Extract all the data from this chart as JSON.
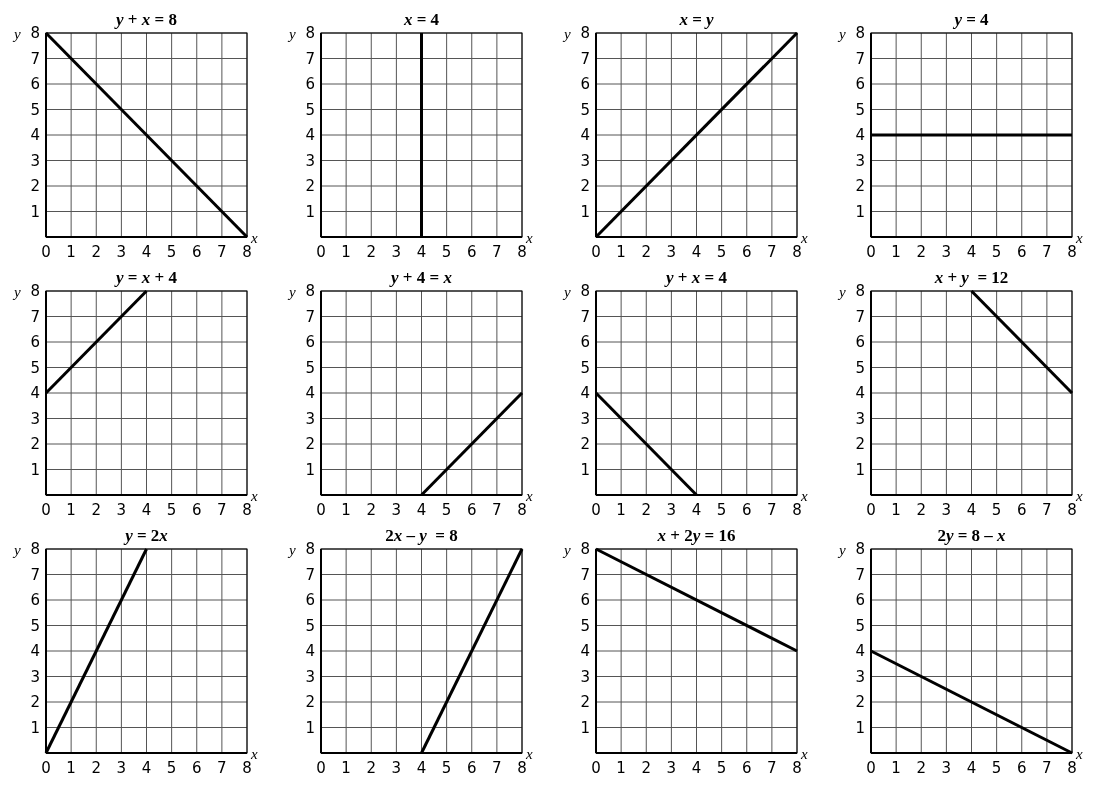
{
  "chart_data": [
    {
      "type": "line",
      "title": "y + x = 8",
      "xlabel": "x",
      "ylabel": "y",
      "x": [
        0,
        8
      ],
      "values": [
        8,
        0
      ],
      "color": "#000000",
      "xlim": [
        0,
        8
      ],
      "ylim": [
        0,
        8
      ],
      "xticks": [
        0,
        1,
        2,
        3,
        4,
        5,
        6,
        7,
        8
      ],
      "yticks": [
        1,
        2,
        3,
        4,
        5,
        6,
        7,
        8
      ],
      "grid": true
    },
    {
      "type": "line",
      "title": "x = 4",
      "xlabel": "x",
      "ylabel": "y",
      "x": [
        4,
        4
      ],
      "values": [
        0,
        8
      ],
      "color": "#000000",
      "xlim": [
        0,
        8
      ],
      "ylim": [
        0,
        8
      ],
      "xticks": [
        0,
        1,
        2,
        3,
        4,
        5,
        6,
        7,
        8
      ],
      "yticks": [
        1,
        2,
        3,
        4,
        5,
        6,
        7,
        8
      ],
      "grid": true
    },
    {
      "type": "line",
      "title": "x = y",
      "xlabel": "x",
      "ylabel": "y",
      "x": [
        0,
        8
      ],
      "values": [
        0,
        8
      ],
      "color": "#000000",
      "xlim": [
        0,
        8
      ],
      "ylim": [
        0,
        8
      ],
      "xticks": [
        0,
        1,
        2,
        3,
        4,
        5,
        6,
        7,
        8
      ],
      "yticks": [
        1,
        2,
        3,
        4,
        5,
        6,
        7,
        8
      ],
      "grid": true
    },
    {
      "type": "line",
      "title": "y = 4",
      "xlabel": "x",
      "ylabel": "y",
      "x": [
        0,
        8
      ],
      "values": [
        4,
        4
      ],
      "color": "#000000",
      "xlim": [
        0,
        8
      ],
      "ylim": [
        0,
        8
      ],
      "xticks": [
        0,
        1,
        2,
        3,
        4,
        5,
        6,
        7,
        8
      ],
      "yticks": [
        1,
        2,
        3,
        4,
        5,
        6,
        7,
        8
      ],
      "grid": true
    },
    {
      "type": "line",
      "title": "y = x + 4",
      "xlabel": "x",
      "ylabel": "y",
      "x": [
        0,
        4
      ],
      "values": [
        4,
        8
      ],
      "color": "#000000",
      "xlim": [
        0,
        8
      ],
      "ylim": [
        0,
        8
      ],
      "xticks": [
        0,
        1,
        2,
        3,
        4,
        5,
        6,
        7,
        8
      ],
      "yticks": [
        1,
        2,
        3,
        4,
        5,
        6,
        7,
        8
      ],
      "grid": true
    },
    {
      "type": "line",
      "title": "y + 4 = x",
      "xlabel": "x",
      "ylabel": "y",
      "x": [
        4,
        8
      ],
      "values": [
        0,
        4
      ],
      "color": "#000000",
      "xlim": [
        0,
        8
      ],
      "ylim": [
        0,
        8
      ],
      "xticks": [
        0,
        1,
        2,
        3,
        4,
        5,
        6,
        7,
        8
      ],
      "yticks": [
        1,
        2,
        3,
        4,
        5,
        6,
        7,
        8
      ],
      "grid": true
    },
    {
      "type": "line",
      "title": "y + x = 4",
      "xlabel": "x",
      "ylabel": "y",
      "x": [
        0,
        4
      ],
      "values": [
        4,
        0
      ],
      "color": "#000000",
      "xlim": [
        0,
        8
      ],
      "ylim": [
        0,
        8
      ],
      "xticks": [
        0,
        1,
        2,
        3,
        4,
        5,
        6,
        7,
        8
      ],
      "yticks": [
        1,
        2,
        3,
        4,
        5,
        6,
        7,
        8
      ],
      "grid": true
    },
    {
      "type": "line",
      "title": "x + y  = 12",
      "xlabel": "x",
      "ylabel": "y",
      "x": [
        4,
        8
      ],
      "values": [
        8,
        4
      ],
      "color": "#000000",
      "xlim": [
        0,
        8
      ],
      "ylim": [
        0,
        8
      ],
      "xticks": [
        0,
        1,
        2,
        3,
        4,
        5,
        6,
        7,
        8
      ],
      "yticks": [
        1,
        2,
        3,
        4,
        5,
        6,
        7,
        8
      ],
      "grid": true
    },
    {
      "type": "line",
      "title": "y = 2x",
      "xlabel": "x",
      "ylabel": "y",
      "x": [
        0,
        4
      ],
      "values": [
        0,
        8
      ],
      "color": "#000000",
      "xlim": [
        0,
        8
      ],
      "ylim": [
        0,
        8
      ],
      "xticks": [
        0,
        1,
        2,
        3,
        4,
        5,
        6,
        7,
        8
      ],
      "yticks": [
        1,
        2,
        3,
        4,
        5,
        6,
        7,
        8
      ],
      "grid": true
    },
    {
      "type": "line",
      "title": "2x – y  = 8",
      "xlabel": "x",
      "ylabel": "y",
      "x": [
        4,
        8
      ],
      "values": [
        0,
        8
      ],
      "color": "#000000",
      "xlim": [
        0,
        8
      ],
      "ylim": [
        0,
        8
      ],
      "xticks": [
        0,
        1,
        2,
        3,
        4,
        5,
        6,
        7,
        8
      ],
      "yticks": [
        1,
        2,
        3,
        4,
        5,
        6,
        7,
        8
      ],
      "grid": true
    },
    {
      "type": "line",
      "title": "x + 2y = 16",
      "xlabel": "x",
      "ylabel": "y",
      "x": [
        0,
        8
      ],
      "values": [
        8,
        4
      ],
      "color": "#000000",
      "xlim": [
        0,
        8
      ],
      "ylim": [
        0,
        8
      ],
      "xticks": [
        0,
        1,
        2,
        3,
        4,
        5,
        6,
        7,
        8
      ],
      "yticks": [
        1,
        2,
        3,
        4,
        5,
        6,
        7,
        8
      ],
      "grid": true
    },
    {
      "type": "line",
      "title": "2y = 8 – x",
      "xlabel": "x",
      "ylabel": "y",
      "x": [
        0,
        8
      ],
      "values": [
        4,
        0
      ],
      "color": "#000000",
      "xlim": [
        0,
        8
      ],
      "ylim": [
        0,
        8
      ],
      "xticks": [
        0,
        1,
        2,
        3,
        4,
        5,
        6,
        7,
        8
      ],
      "yticks": [
        1,
        2,
        3,
        4,
        5,
        6,
        7,
        8
      ],
      "grid": true
    }
  ]
}
